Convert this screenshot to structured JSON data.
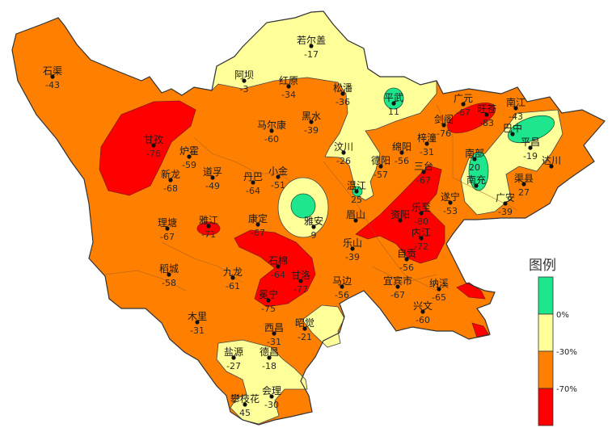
{
  "legend": {
    "title": "图例",
    "classes": [
      {
        "label": "",
        "color": "#1ee68c",
        "meaning": "> 0%"
      },
      {
        "label": "0%",
        "color": "#ffff99",
        "meaning": "-30% ~ 0%"
      },
      {
        "label": "-30%",
        "color": "#ff8000",
        "meaning": "-70% ~ -30%"
      },
      {
        "label": "-70%",
        "color": "#ff0000",
        "meaning": "< -70%"
      }
    ]
  },
  "colors": {
    "green": "#1ee68c",
    "yellow": "#ffff99",
    "orange": "#ff8000",
    "red": "#ff0000",
    "border": "#333333",
    "county": "#9a5a20"
  },
  "stations": [
    {
      "name": "石渠",
      "value": "-43"
    },
    {
      "name": "阿坝",
      "value": "-3"
    },
    {
      "name": "红原",
      "value": "-34"
    },
    {
      "name": "若尔盖",
      "value": "-17"
    },
    {
      "name": "松潘",
      "value": "-36"
    },
    {
      "name": "黑水",
      "value": "-39"
    },
    {
      "name": "马尔康",
      "value": "-60"
    },
    {
      "name": "甘孜",
      "value": "-76"
    },
    {
      "name": "炉霍",
      "value": "-59"
    },
    {
      "name": "新龙",
      "value": "-68"
    },
    {
      "name": "道孚",
      "value": "-49"
    },
    {
      "name": "丹巴",
      "value": "-64"
    },
    {
      "name": "小金",
      "value": "-51"
    },
    {
      "name": "汶川",
      "value": "-26"
    },
    {
      "name": "德阳",
      "value": "-57"
    },
    {
      "name": "温江",
      "value": "25"
    },
    {
      "name": "平武",
      "value": "11"
    },
    {
      "name": "广元",
      "value": "-67"
    },
    {
      "name": "旺苍",
      "value": "-83"
    },
    {
      "name": "剑阁",
      "value": "-76"
    },
    {
      "name": "南江",
      "value": "-43"
    },
    {
      "name": "巴中",
      "value": ""
    },
    {
      "name": "平昌",
      "value": "-19"
    },
    {
      "name": "梓潼",
      "value": "-31"
    },
    {
      "name": "绵阳",
      "value": "-56"
    },
    {
      "name": "三台",
      "value": "-67"
    },
    {
      "name": "南部",
      "value": "20"
    },
    {
      "name": "南充",
      "value": ""
    },
    {
      "name": "达川",
      "value": ""
    },
    {
      "name": "渠县",
      "value": "27"
    },
    {
      "name": "广安",
      "value": "-39"
    },
    {
      "name": "遂宁",
      "value": "-53"
    },
    {
      "name": "乐至",
      "value": "-80"
    },
    {
      "name": "资阳",
      "value": ""
    },
    {
      "name": "眉山",
      "value": ""
    },
    {
      "name": "内江",
      "value": "-72"
    },
    {
      "name": "乐山",
      "value": "-39"
    },
    {
      "name": "雅安",
      "value": "9"
    },
    {
      "name": "理塘",
      "value": "-67"
    },
    {
      "name": "雅江",
      "value": "-71"
    },
    {
      "name": "康定",
      "value": "-67"
    },
    {
      "name": "稻城",
      "value": "-58"
    },
    {
      "name": "九龙",
      "value": "-61"
    },
    {
      "name": "石棉",
      "value": "-64"
    },
    {
      "name": "甘洛",
      "value": "-77"
    },
    {
      "name": "冕宁",
      "value": "-75"
    },
    {
      "name": "木里",
      "value": "-31"
    },
    {
      "name": "西昌",
      "value": "-31"
    },
    {
      "name": "昭觉",
      "value": "-21"
    },
    {
      "name": "盐源",
      "value": "-27"
    },
    {
      "name": "德昌",
      "value": "-18"
    },
    {
      "name": "会理",
      "value": "-30"
    },
    {
      "name": "攀枝花",
      "value": "45"
    },
    {
      "name": "马边",
      "value": "-56"
    },
    {
      "name": "自贡",
      "value": "-56"
    },
    {
      "name": "宜宾市",
      "value": "-67"
    },
    {
      "name": "纳溪",
      "value": "-65"
    },
    {
      "name": "兴文",
      "value": "-60"
    }
  ]
}
